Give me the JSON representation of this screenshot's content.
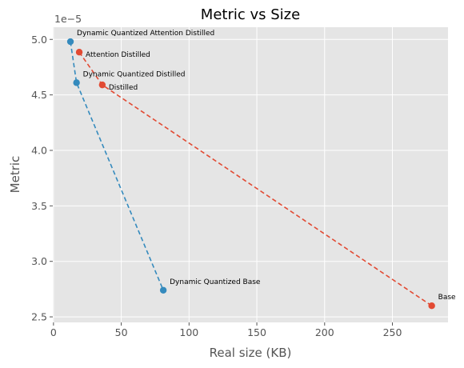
{
  "chart_data": {
    "type": "scatter",
    "title": "Metric vs Size",
    "xlabel": "Real size (KB)",
    "ylabel": "Metric",
    "y_offset_label": "1e−5",
    "xlim": [
      -0.5,
      291
    ],
    "ylim": [
      2.45,
      5.11
    ],
    "x_ticks": [
      0,
      50,
      100,
      150,
      200,
      250
    ],
    "y_ticks": [
      2.5,
      3.0,
      3.5,
      4.0,
      4.5,
      5.0
    ],
    "x_tick_labels": [
      "0",
      "50",
      "100",
      "150",
      "200",
      "250"
    ],
    "y_tick_labels": [
      "2.5",
      "3.0",
      "3.5",
      "4.0",
      "4.5",
      "5.0"
    ],
    "grid": true,
    "series": [
      {
        "color": "#e24a33",
        "linestyle": "dashed",
        "points": [
          {
            "x": 19,
            "y": 4.885,
            "label": "Attention Distilled"
          },
          {
            "x": 36,
            "y": 4.59,
            "label": "Distilled"
          },
          {
            "x": 279,
            "y": 2.6,
            "label": "Base"
          }
        ]
      },
      {
        "color": "#348abd",
        "linestyle": "dashed",
        "points": [
          {
            "x": 12.5,
            "y": 4.98,
            "label": "Dynamic Quantized Attention Distilled"
          },
          {
            "x": 17,
            "y": 4.61,
            "label": "Dynamic Quantized Distilled"
          },
          {
            "x": 81,
            "y": 2.74,
            "label": "Dynamic Quantized Base"
          }
        ]
      }
    ]
  }
}
